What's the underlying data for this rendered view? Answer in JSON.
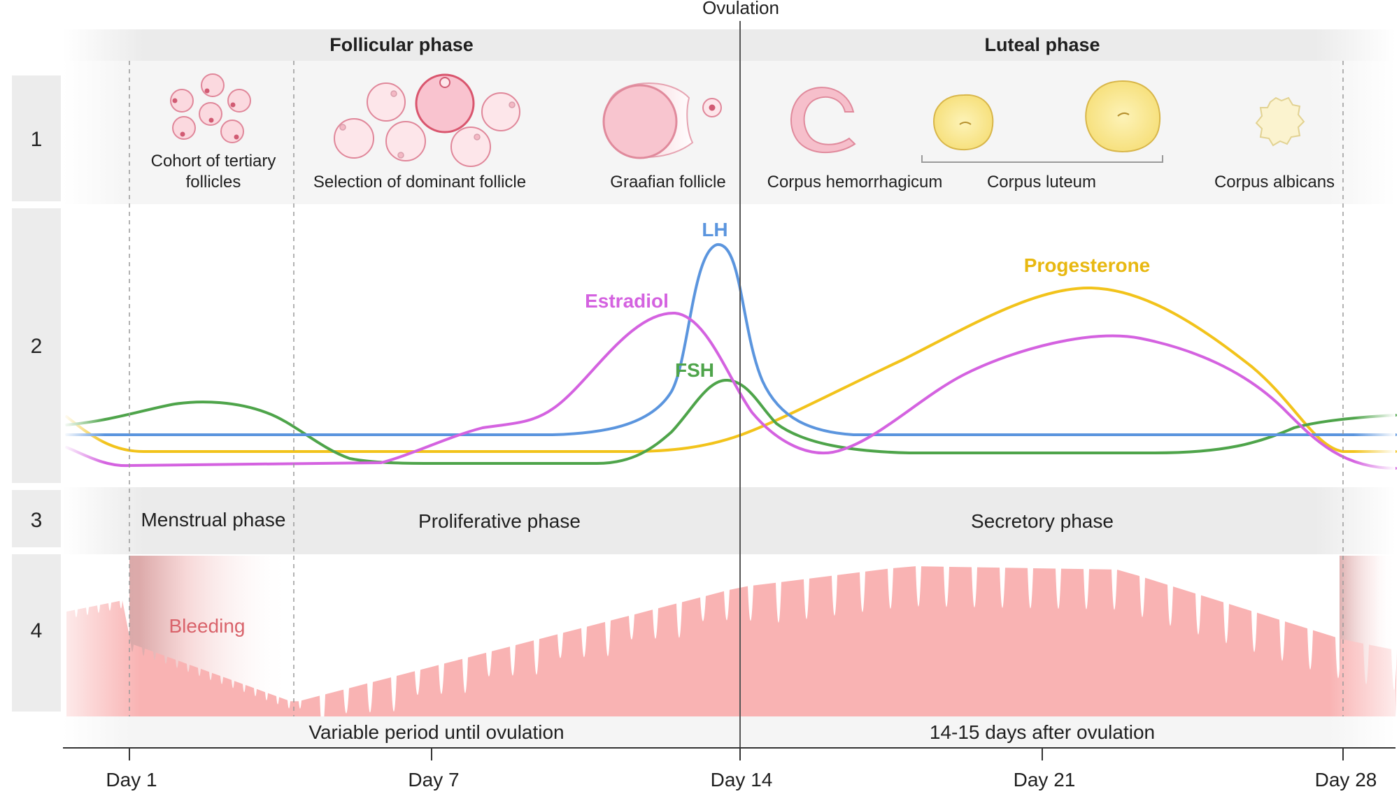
{
  "ovulation_label": "Ovulation",
  "top_phases": {
    "left": "Follicular phase",
    "right": "Luteal phase"
  },
  "row_numbers": [
    "1",
    "2",
    "3",
    "4"
  ],
  "ovarian_stages": {
    "cohort_line1": "Cohort of tertiary",
    "cohort_line2": "follicles",
    "selection": "Selection of dominant follicle",
    "graafian": "Graafian follicle",
    "hemorrhagicum": "Corpus hemorrhagicum",
    "luteum": "Corpus luteum",
    "albicans": "Corpus albicans"
  },
  "hormones": {
    "lh": {
      "label": "LH",
      "color": "#5b95de"
    },
    "estradiol": {
      "label": "Estradiol",
      "color": "#d462e0"
    },
    "fsh": {
      "label": "FSH",
      "color": "#4ea44a"
    },
    "progesterone": {
      "label": "Progesterone",
      "color": "#f2c31b"
    }
  },
  "uterine_phases": {
    "menstrual": "Menstrual phase",
    "proliferative": "Proliferative phase",
    "secretory": "Secretory phase"
  },
  "endometrium": {
    "bleeding_label": "Bleeding",
    "color": "#f9b3b3",
    "bleed_text_color": "#d9636b"
  },
  "durations": {
    "follicular": "Variable period until ovulation",
    "luteal": "14-15 days after ovulation"
  },
  "days": [
    "Day 1",
    "Day 7",
    "Day 14",
    "Day 21",
    "Day 28"
  ]
}
